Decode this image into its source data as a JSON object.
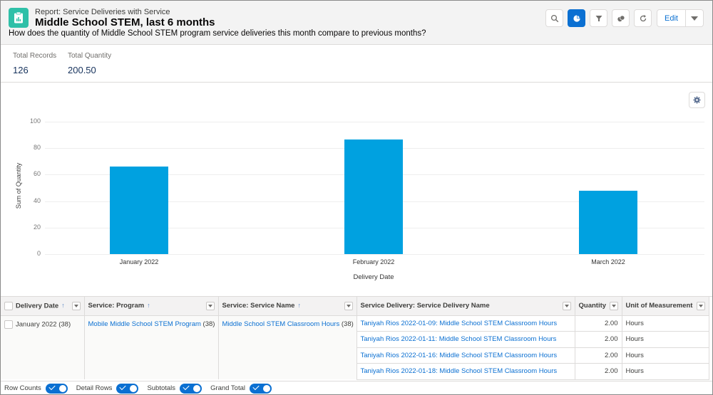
{
  "header": {
    "report_type": "Report: Service Deliveries with Service",
    "title": "Middle School STEM, last 6 months",
    "description": "How does the quantity of Middle School STEM program service deliveries this month compare to previous months?",
    "icon": "report-icon",
    "toolbar": {
      "buttons": [
        {
          "name": "search",
          "icon": "search-icon",
          "active": false
        },
        {
          "name": "chart",
          "icon": "pie-chart-icon",
          "active": true
        },
        {
          "name": "filter",
          "icon": "filter-icon",
          "active": false
        },
        {
          "name": "toggle-view",
          "icon": "toggle-icon",
          "active": false
        },
        {
          "name": "refresh",
          "icon": "refresh-icon",
          "active": false
        }
      ],
      "edit_label": "Edit",
      "accent": "#0b70d2"
    }
  },
  "summary": {
    "total_records_label": "Total Records",
    "total_records_value": "126",
    "total_quantity_label": "Total Quantity",
    "total_quantity_value": "200.50"
  },
  "chart_data": {
    "type": "bar",
    "title": "",
    "categories": [
      "January 2022",
      "February 2022",
      "March 2022"
    ],
    "values": [
      66,
      86.5,
      48
    ],
    "xlabel": "Delivery Date",
    "ylabel": "Sum of Quantity",
    "ylim": [
      0,
      100
    ],
    "yticks": [
      0,
      20,
      40,
      60,
      80,
      100
    ],
    "grid": true,
    "legend": "none",
    "bar_color": "#00a1e0"
  },
  "table": {
    "columns": [
      {
        "label": "Delivery Date",
        "sortable": true
      },
      {
        "label": "Service: Program",
        "sortable": true
      },
      {
        "label": "Service: Service Name",
        "sortable": true
      },
      {
        "label": "Service Delivery: Service Delivery Name",
        "sortable": false
      },
      {
        "label": "Quantity",
        "sortable": false
      },
      {
        "label": "Unit of Measurement",
        "sortable": false
      }
    ],
    "sort_icon": "↑",
    "group": {
      "delivery_date": "January 2022",
      "delivery_date_count": "(38)",
      "program": "Mobile Middle School STEM Program",
      "program_count": "(38)",
      "service_name": "Middle School STEM Classroom Hours",
      "service_name_count": "(38)"
    },
    "rows": [
      {
        "name": "Taniyah Rios 2022-01-09: Middle School STEM Classroom Hours",
        "quantity": "2.00",
        "unit": "Hours"
      },
      {
        "name": "Taniyah Rios 2022-01-11: Middle School STEM Classroom Hours",
        "quantity": "2.00",
        "unit": "Hours"
      },
      {
        "name": "Taniyah Rios 2022-01-16: Middle School STEM Classroom Hours",
        "quantity": "2.00",
        "unit": "Hours"
      },
      {
        "name": "Taniyah Rios 2022-01-18: Middle School STEM Classroom Hours",
        "quantity": "2.00",
        "unit": "Hours"
      }
    ]
  },
  "footer": {
    "toggles": [
      {
        "label": "Row Counts",
        "on": true
      },
      {
        "label": "Detail Rows",
        "on": true
      },
      {
        "label": "Subtotals",
        "on": true
      },
      {
        "label": "Grand Total",
        "on": true
      }
    ]
  }
}
